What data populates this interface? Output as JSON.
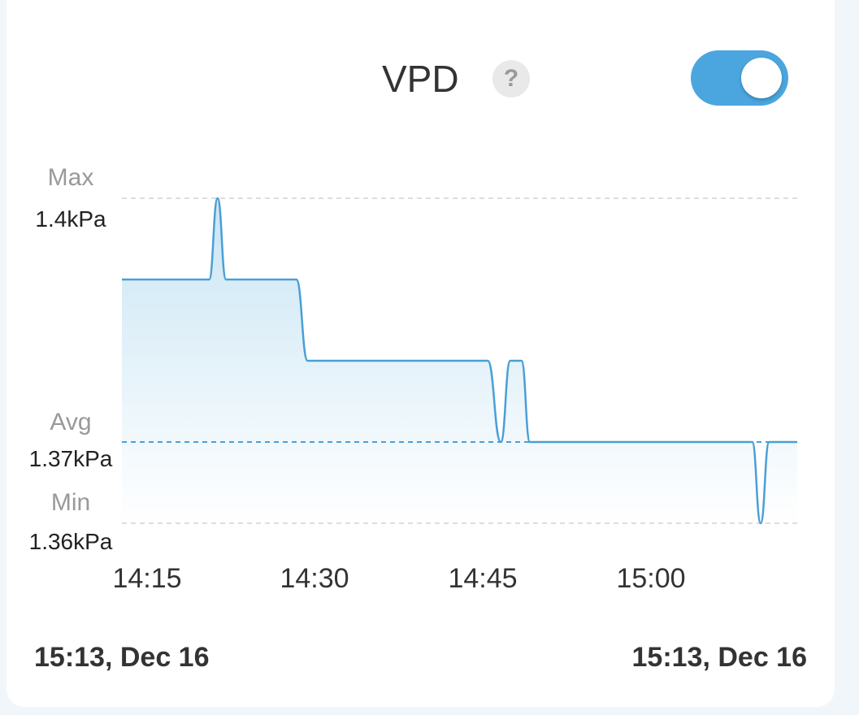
{
  "header": {
    "title": "VPD",
    "help_icon": "question-icon",
    "toggle_on": true,
    "accent": "#4ba6df"
  },
  "chart_data": {
    "type": "area",
    "unit": "kPa",
    "ylim": [
      1.36,
      1.4
    ],
    "stats": {
      "max_label": "Max",
      "max": "1.4kPa",
      "avg_label": "Avg",
      "avg": "1.37kPa",
      "min_label": "Min",
      "min": "1.36kPa"
    },
    "x_ticks": [
      "14:15",
      "14:30",
      "14:45",
      "15:00"
    ],
    "xlim": [
      "14:13",
      "15:13"
    ],
    "points": [
      [
        "14:13:00",
        1.39
      ],
      [
        "14:20:45",
        1.39
      ],
      [
        "14:21:30",
        1.4
      ],
      [
        "14:22:15",
        1.39
      ],
      [
        "14:28:30",
        1.39
      ],
      [
        "14:29:30",
        1.38
      ],
      [
        "14:45:30",
        1.38
      ],
      [
        "14:46:40",
        1.37
      ],
      [
        "14:47:30",
        1.38
      ],
      [
        "14:48:30",
        1.38
      ],
      [
        "14:49:15",
        1.37
      ],
      [
        "15:09:00",
        1.37
      ],
      [
        "15:09:45",
        1.36
      ],
      [
        "15:10:30",
        1.37
      ],
      [
        "15:13:00",
        1.37
      ]
    ],
    "line_color": "#4a9fd6"
  },
  "footer": {
    "start": "15:13, Dec 16",
    "end": "15:13, Dec 16"
  }
}
